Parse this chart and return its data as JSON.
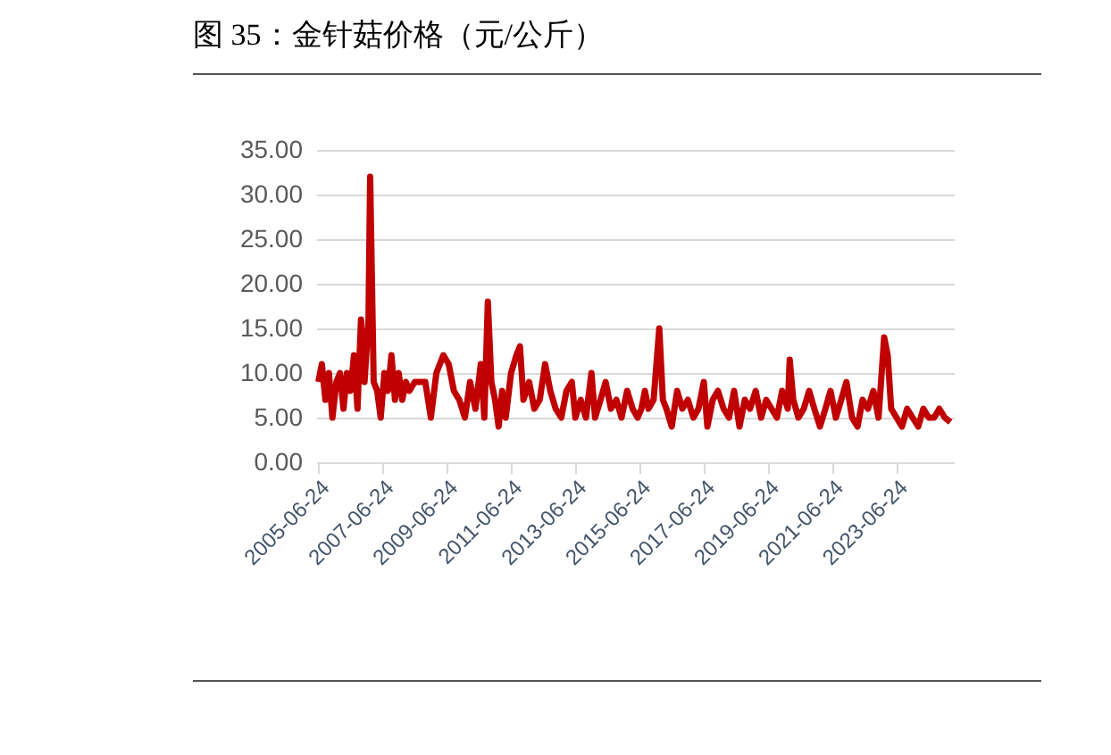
{
  "chart_data": {
    "type": "line",
    "title": "图 35：金针菇价格（元/公斤）",
    "x": [
      "2005-06-24",
      "2005-08-03",
      "2005-09-12",
      "2005-10-22",
      "2005-12-01",
      "2006-01-15",
      "2006-02-25",
      "2006-04-06",
      "2006-05-15",
      "2006-06-24",
      "2006-08-03",
      "2006-09-12",
      "2006-10-22",
      "2006-12-01",
      "2007-01-15",
      "2007-02-03",
      "2007-03-15",
      "2007-04-24",
      "2007-06-03",
      "2007-07-15",
      "2007-08-24",
      "2007-10-03",
      "2007-11-12",
      "2007-12-24",
      "2008-02-03",
      "2008-03-15",
      "2008-04-24",
      "2008-06-24",
      "2008-08-24",
      "2008-10-22",
      "2008-12-24",
      "2009-02-25",
      "2009-05-15",
      "2009-07-15",
      "2009-09-12",
      "2009-11-12",
      "2010-01-15",
      "2010-03-15",
      "2010-05-15",
      "2010-07-15",
      "2010-08-24",
      "2010-10-03",
      "2010-11-12",
      "2010-12-24",
      "2011-02-03",
      "2011-03-15",
      "2011-04-24",
      "2011-06-24",
      "2011-08-24",
      "2011-10-03",
      "2011-11-12",
      "2012-01-15",
      "2012-03-15",
      "2012-05-15",
      "2012-07-15",
      "2012-09-12",
      "2012-11-12",
      "2013-01-15",
      "2013-03-15",
      "2013-05-15",
      "2013-06-24",
      "2013-08-24",
      "2013-10-22",
      "2013-12-24",
      "2014-02-03",
      "2014-04-06",
      "2014-06-03",
      "2014-08-03",
      "2014-10-03",
      "2014-12-01",
      "2015-02-03",
      "2015-04-06",
      "2015-06-03",
      "2015-07-15",
      "2015-08-24",
      "2015-10-03",
      "2015-12-01",
      "2016-02-03",
      "2016-03-15",
      "2016-04-24",
      "2016-06-24",
      "2016-08-24",
      "2016-10-22",
      "2016-12-24",
      "2017-02-25",
      "2017-04-24",
      "2017-06-24",
      "2017-08-03",
      "2017-10-03",
      "2017-12-01",
      "2018-02-03",
      "2018-04-06",
      "2018-06-03",
      "2018-08-03",
      "2018-10-03",
      "2018-12-01",
      "2019-02-03",
      "2019-04-06",
      "2019-06-03",
      "2019-08-03",
      "2019-10-03",
      "2019-12-01",
      "2020-02-03",
      "2020-02-25",
      "2020-04-06",
      "2020-06-03",
      "2020-08-03",
      "2020-10-03",
      "2020-12-01",
      "2021-02-03",
      "2021-04-06",
      "2021-06-03",
      "2021-08-03",
      "2021-10-03",
      "2021-12-01",
      "2022-02-03",
      "2022-04-06",
      "2022-06-03",
      "2022-08-03",
      "2022-10-03",
      "2022-12-01",
      "2023-02-03",
      "2023-03-15",
      "2023-04-24",
      "2023-06-24",
      "2023-08-24",
      "2023-10-22",
      "2023-12-24",
      "2024-02-25",
      "2024-04-24",
      "2024-06-24",
      "2024-08-24",
      "2024-10-22",
      "2024-12-24",
      "2025-02-25"
    ],
    "series": [
      {
        "color": "#c00000",
        "values": [
          9,
          11,
          7,
          10,
          5,
          9,
          10,
          6,
          10,
          8,
          12,
          6,
          16,
          9,
          16,
          32,
          9,
          8,
          5,
          10,
          8,
          12,
          7,
          10,
          7,
          9,
          8,
          9,
          9,
          9,
          5,
          10,
          12,
          11,
          8,
          7,
          5,
          9,
          6,
          11,
          5,
          18,
          9,
          7,
          4,
          8,
          5,
          10,
          12,
          13,
          7,
          9,
          6,
          7,
          11,
          8,
          6,
          5,
          8,
          9,
          5,
          7,
          5,
          10,
          5,
          7,
          9,
          6,
          7,
          5,
          8,
          6,
          5,
          6,
          8,
          6,
          7,
          15,
          7,
          6,
          4,
          8,
          6,
          7,
          5,
          6,
          9,
          4,
          7,
          8,
          6,
          5,
          8,
          4,
          7,
          6,
          8,
          5,
          7,
          6,
          5,
          8,
          6,
          11.5,
          7,
          5,
          6,
          8,
          6,
          4,
          6,
          8,
          5,
          7,
          9,
          5,
          4,
          7,
          6,
          8,
          5,
          14,
          12,
          6,
          5,
          4,
          6,
          5,
          4,
          6,
          5,
          5,
          6,
          5,
          4.5
        ]
      }
    ],
    "xlim": [
      "2005-05-30",
      "2025-04-05"
    ],
    "xticks": [
      "2005-06-24",
      "2007-06-24",
      "2009-06-24",
      "2011-06-24",
      "2013-06-24",
      "2015-06-24",
      "2017-06-24",
      "2019-06-24",
      "2021-06-24",
      "2023-06-24"
    ],
    "ylim": [
      0,
      35
    ],
    "yticks": [
      {
        "value": 0,
        "label": "0.00"
      },
      {
        "value": 5,
        "label": "5.00"
      },
      {
        "value": 10,
        "label": "10.00"
      },
      {
        "value": 15,
        "label": "15.00"
      },
      {
        "value": 20,
        "label": "20.00"
      },
      {
        "value": 25,
        "label": "25.00"
      },
      {
        "value": 30,
        "label": "30.00"
      },
      {
        "value": 35,
        "label": "35.00"
      }
    ],
    "grid": "y",
    "marker": "none",
    "line_style": "solid"
  }
}
